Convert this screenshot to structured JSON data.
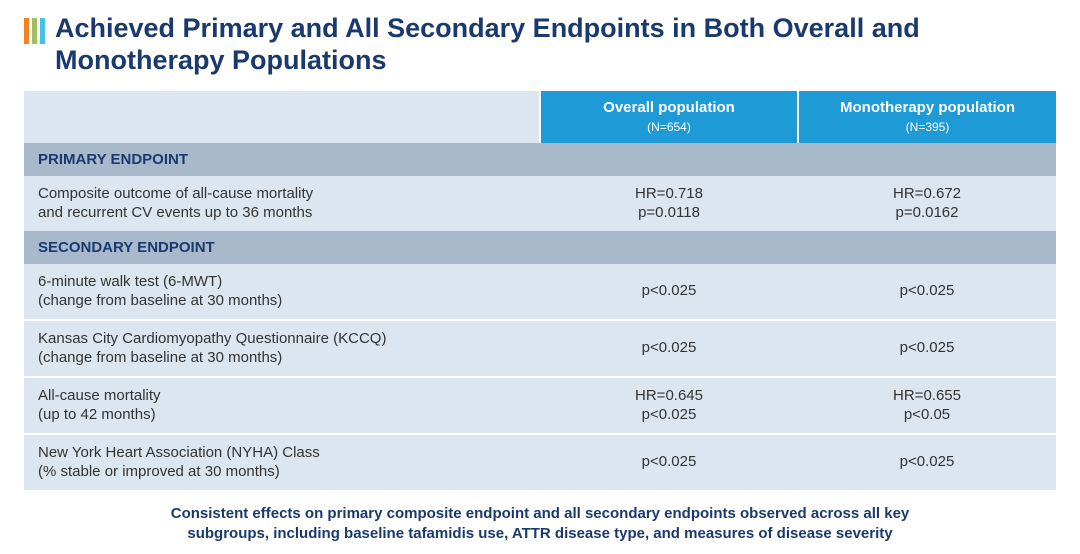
{
  "colors": {
    "title": "#1a3a6e",
    "logo_bar_1": "#f58220",
    "logo_bar_2": "#a0c060",
    "logo_bar_3": "#46bfe8",
    "header_bg": "#1e9ad6",
    "header_text": "#ffffff",
    "header_first_bg": "#dce6f0",
    "section_bg": "#a8b9cc",
    "section_text": "#1a3a6e",
    "row_alt_bg": "#dce6f0",
    "row_text": "#333333",
    "footnote_text": "#1a3a6e"
  },
  "layout": {
    "col1_width_pct": 50,
    "col2_width_pct": 25,
    "col3_width_pct": 25
  },
  "title": "Achieved Primary and All Secondary Endpoints in Both Overall and Monotherapy Populations",
  "columns": {
    "c1_label": "Overall population",
    "c1_n": "(N=654)",
    "c2_label": "Monotherapy population",
    "c2_n": "(N=395)"
  },
  "sections": [
    {
      "label": "PRIMARY ENDPOINT"
    },
    {
      "label": "SECONDARY ENDPOINT"
    }
  ],
  "rows": {
    "primary_0": {
      "label_l1": "Composite outcome of all-cause mortality",
      "label_l2": "and recurrent CV events up to 36 months",
      "c1_l1": "HR=0.718",
      "c1_l2": "p=0.0118",
      "c2_l1": "HR=0.672",
      "c2_l2": "p=0.0162"
    },
    "sec_0": {
      "label_l1": "6-minute walk test (6-MWT)",
      "label_l2": "(change from baseline at 30 months)",
      "c1": "p<0.025",
      "c2": "p<0.025"
    },
    "sec_1": {
      "label_l1": "Kansas City Cardiomyopathy Questionnaire (KCCQ)",
      "label_l2": "(change from baseline at 30 months)",
      "c1": "p<0.025",
      "c2": "p<0.025"
    },
    "sec_2": {
      "label_l1": "All-cause mortality",
      "label_l2": "(up to 42 months)",
      "c1_l1": "HR=0.645",
      "c1_l2": "p<0.025",
      "c2_l1": "HR=0.655",
      "c2_l2": "p<0.05"
    },
    "sec_3": {
      "label_l1": "New York Heart Association (NYHA) Class",
      "label_l2": "(% stable or improved at 30 months)",
      "c1": "p<0.025",
      "c2": "p<0.025"
    }
  },
  "footnote_l1": "Consistent effects on primary composite endpoint and all secondary endpoints observed across all key",
  "footnote_l2": "subgroups, including baseline tafamidis use, ATTR disease type, and measures of disease severity"
}
